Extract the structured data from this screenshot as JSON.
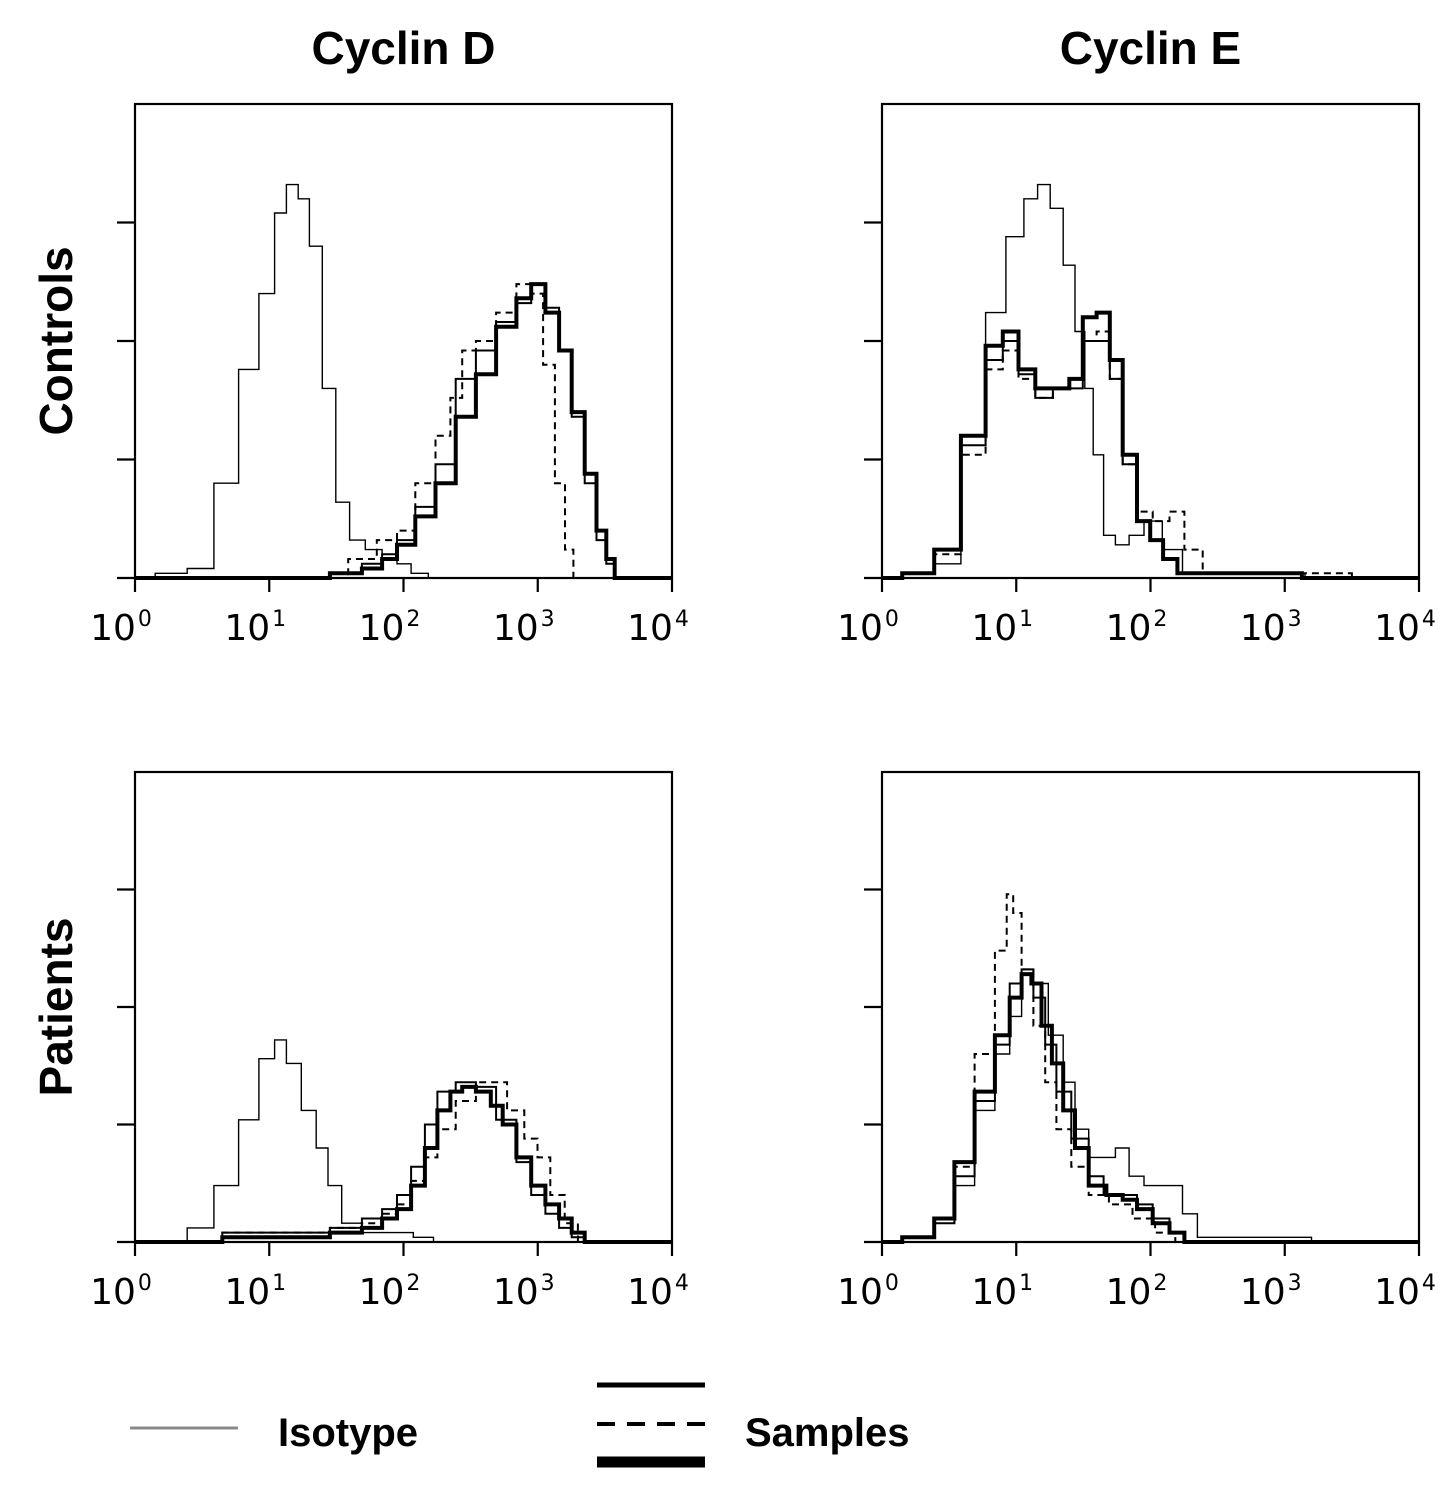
{
  "chart_data": [
    {
      "type": "line",
      "title": "Cyclin D",
      "row_label": "Controls",
      "x_scale": "log10",
      "xlim": [
        1,
        10000
      ],
      "x_tick_labels": [
        "10",
        "10",
        "10",
        "10",
        "10"
      ],
      "x_tick_exponents": [
        "0",
        "1",
        "2",
        "3",
        "4"
      ],
      "ylim": [
        0,
        100
      ],
      "y_ticks": [
        0,
        25,
        50,
        75
      ],
      "series": [
        {
          "name": "Isotype",
          "style": "thin",
          "x": [
            1,
            2,
            3,
            5,
            7,
            10,
            12,
            15,
            18,
            22,
            28,
            35,
            45,
            60,
            80,
            100,
            130,
            180,
            250,
            10000
          ],
          "y": [
            0,
            1,
            2,
            20,
            44,
            60,
            77,
            83,
            80,
            70,
            40,
            16,
            8,
            6,
            5,
            3,
            1,
            0,
            0,
            0
          ]
        },
        {
          "name": "Samples",
          "style": "solid",
          "x": [
            1,
            20,
            40,
            60,
            80,
            100,
            150,
            200,
            300,
            400,
            600,
            800,
            1000,
            1300,
            1600,
            2000,
            2500,
            3000,
            3500,
            4000,
            10000
          ],
          "y": [
            0,
            0,
            1,
            3,
            5,
            8,
            15,
            24,
            42,
            48,
            54,
            58,
            62,
            57,
            48,
            34,
            20,
            8,
            3,
            0,
            0
          ]
        },
        {
          "name": "Samples",
          "style": "dashed",
          "x": [
            1,
            30,
            50,
            80,
            100,
            150,
            200,
            250,
            300,
            400,
            600,
            800,
            1000,
            1200,
            1500,
            1700,
            2000,
            10000
          ],
          "y": [
            0,
            0,
            4,
            8,
            10,
            20,
            30,
            38,
            48,
            50,
            56,
            62,
            60,
            45,
            20,
            6,
            0,
            0
          ]
        },
        {
          "name": "Samples",
          "style": "thick",
          "x": [
            1,
            20,
            40,
            60,
            80,
            100,
            150,
            200,
            300,
            400,
            600,
            800,
            1000,
            1300,
            1600,
            2000,
            2500,
            3000,
            3500,
            4000,
            10000
          ],
          "y": [
            0,
            0,
            1,
            2,
            4,
            7,
            13,
            20,
            34,
            43,
            53,
            59,
            62,
            56,
            48,
            35,
            22,
            10,
            4,
            0,
            0
          ]
        }
      ]
    },
    {
      "type": "line",
      "title": "Cyclin E",
      "row_label": "",
      "x_scale": "log10",
      "xlim": [
        1,
        10000
      ],
      "x_tick_labels": [
        "10",
        "10",
        "10",
        "10",
        "10"
      ],
      "x_tick_exponents": [
        "0",
        "1",
        "2",
        "3",
        "4"
      ],
      "ylim": [
        0,
        100
      ],
      "y_ticks": [
        0,
        25,
        50,
        75
      ],
      "series": [
        {
          "name": "Isotype",
          "style": "thin",
          "x": [
            1,
            2,
            3,
            5,
            7,
            10,
            13,
            16,
            20,
            25,
            30,
            35,
            40,
            50,
            60,
            80,
            100,
            150,
            200,
            10000
          ],
          "y": [
            0,
            1,
            3,
            28,
            56,
            72,
            80,
            83,
            78,
            66,
            52,
            40,
            26,
            9,
            7,
            9,
            12,
            6,
            1,
            0
          ]
        },
        {
          "name": "Samples",
          "style": "solid",
          "x": [
            1,
            2,
            3,
            5,
            7,
            9,
            12,
            16,
            22,
            28,
            35,
            45,
            55,
            70,
            90,
            110,
            140,
            180,
            10000
          ],
          "y": [
            0,
            1,
            6,
            28,
            46,
            50,
            43,
            38,
            40,
            40,
            50,
            50,
            42,
            24,
            12,
            8,
            4,
            1,
            0
          ]
        },
        {
          "name": "Samples",
          "style": "dashed",
          "x": [
            1,
            2,
            3,
            5,
            7,
            9,
            12,
            16,
            22,
            28,
            35,
            45,
            55,
            70,
            90,
            120,
            160,
            200,
            300,
            1000,
            10000
          ],
          "y": [
            0,
            1,
            5,
            26,
            44,
            48,
            42,
            38,
            40,
            42,
            50,
            52,
            42,
            24,
            14,
            12,
            14,
            6,
            1,
            1,
            0
          ]
        },
        {
          "name": "Samples",
          "style": "thick",
          "x": [
            1,
            2,
            3,
            5,
            7,
            9,
            12,
            16,
            22,
            28,
            35,
            45,
            55,
            70,
            90,
            110,
            140,
            180,
            10000
          ],
          "y": [
            0,
            1,
            6,
            30,
            49,
            52,
            44,
            40,
            40,
            42,
            55,
            56,
            46,
            26,
            12,
            8,
            4,
            1,
            0
          ]
        }
      ]
    },
    {
      "type": "line",
      "title": "",
      "row_label": "Patients",
      "x_scale": "log10",
      "xlim": [
        1,
        10000
      ],
      "x_tick_labels": [
        "10",
        "10",
        "10",
        "10",
        "10"
      ],
      "x_tick_exponents": [
        "0",
        "1",
        "2",
        "3",
        "4"
      ],
      "ylim": [
        0,
        100
      ],
      "y_ticks": [
        0,
        25,
        50,
        75
      ],
      "series": [
        {
          "name": "Isotype",
          "style": "thin",
          "x": [
            1,
            2,
            3,
            5,
            7,
            10,
            12,
            15,
            20,
            25,
            30,
            40,
            60,
            80,
            100,
            140,
            200,
            10000
          ],
          "y": [
            0,
            0,
            3,
            12,
            26,
            39,
            43,
            38,
            28,
            20,
            12,
            4,
            2,
            2,
            2,
            1,
            0,
            0
          ]
        },
        {
          "name": "Samples",
          "style": "solid",
          "x": [
            1,
            20,
            40,
            60,
            80,
            100,
            130,
            160,
            200,
            300,
            400,
            600,
            800,
            1000,
            1300,
            1600,
            2000,
            2500,
            10000
          ],
          "y": [
            0,
            2,
            3,
            5,
            7,
            10,
            16,
            25,
            32,
            34,
            33,
            26,
            17,
            10,
            6,
            3,
            1,
            0,
            0
          ]
        },
        {
          "name": "Samples",
          "style": "dashed",
          "x": [
            1,
            20,
            40,
            60,
            80,
            100,
            130,
            160,
            200,
            300,
            400,
            500,
            700,
            900,
            1100,
            1400,
            1800,
            2200,
            10000
          ],
          "y": [
            0,
            2,
            3,
            4,
            6,
            8,
            13,
            18,
            24,
            30,
            34,
            34,
            28,
            22,
            18,
            10,
            4,
            0,
            0
          ]
        },
        {
          "name": "Samples",
          "style": "thick",
          "x": [
            1,
            20,
            40,
            60,
            80,
            100,
            130,
            160,
            200,
            250,
            300,
            400,
            500,
            600,
            800,
            1000,
            1300,
            1600,
            2000,
            2500,
            3000,
            10000
          ],
          "y": [
            0,
            1,
            2,
            3,
            5,
            7,
            12,
            20,
            28,
            32,
            33,
            32,
            29,
            25,
            18,
            12,
            8,
            5,
            2,
            0,
            0,
            0
          ]
        }
      ]
    },
    {
      "type": "line",
      "title": "",
      "row_label": "",
      "x_scale": "log10",
      "xlim": [
        1,
        10000
      ],
      "x_tick_labels": [
        "10",
        "10",
        "10",
        "10",
        "10"
      ],
      "x_tick_exponents": [
        "0",
        "1",
        "2",
        "3",
        "4"
      ],
      "ylim": [
        0,
        100
      ],
      "y_ticks": [
        0,
        25,
        50,
        75
      ],
      "series": [
        {
          "name": "Isotype",
          "style": "thin",
          "x": [
            1,
            2,
            3,
            4,
            6,
            8,
            10,
            12,
            15,
            20,
            25,
            30,
            40,
            50,
            60,
            80,
            100,
            150,
            200,
            250,
            10000
          ],
          "y": [
            0,
            1,
            4,
            12,
            28,
            40,
            48,
            58,
            55,
            44,
            34,
            24,
            18,
            18,
            20,
            14,
            12,
            12,
            6,
            1,
            0
          ]
        },
        {
          "name": "Samples",
          "style": "solid",
          "x": [
            1,
            2,
            3,
            4,
            6,
            8,
            10,
            12,
            15,
            18,
            22,
            30,
            40,
            50,
            70,
            90,
            120,
            160,
            200,
            10000
          ],
          "y": [
            0,
            1,
            4,
            14,
            30,
            42,
            55,
            58,
            52,
            42,
            32,
            22,
            14,
            10,
            10,
            8,
            5,
            2,
            0,
            0
          ]
        },
        {
          "name": "Samples",
          "style": "dashed",
          "x": [
            1,
            2,
            3,
            4,
            6,
            8,
            9,
            10,
            12,
            15,
            18,
            22,
            30,
            40,
            60,
            90,
            130,
            180,
            10000
          ],
          "y": [
            0,
            1,
            5,
            16,
            40,
            62,
            74,
            70,
            58,
            46,
            34,
            24,
            16,
            10,
            8,
            5,
            2,
            0,
            0
          ]
        },
        {
          "name": "Samples",
          "style": "thick",
          "x": [
            1,
            2,
            3,
            4,
            6,
            8,
            10,
            12,
            14,
            17,
            20,
            25,
            30,
            40,
            55,
            70,
            90,
            120,
            160,
            200,
            10000
          ],
          "y": [
            0,
            1,
            5,
            17,
            32,
            44,
            52,
            57,
            55,
            46,
            38,
            28,
            20,
            12,
            10,
            9,
            7,
            4,
            2,
            0,
            0
          ]
        }
      ]
    }
  ],
  "legend": {
    "isotype_label": "Isotype",
    "samples_label": "Samples"
  }
}
